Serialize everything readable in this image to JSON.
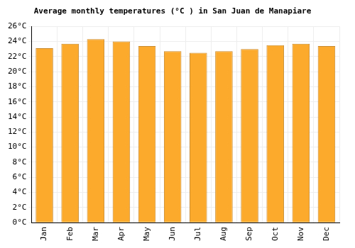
{
  "chart_data": {
    "type": "bar",
    "title": "Average monthly temperatures (°C ) in San Juan de Manapiare",
    "categories": [
      "Jan",
      "Feb",
      "Mar",
      "Apr",
      "May",
      "Jun",
      "Jul",
      "Aug",
      "Sep",
      "Oct",
      "Nov",
      "Dec"
    ],
    "values": [
      23.1,
      23.7,
      24.3,
      24.0,
      23.4,
      22.7,
      22.5,
      22.7,
      23.0,
      23.5,
      23.7,
      23.4
    ],
    "color": "#fbaa2b",
    "ylim": [
      0,
      26
    ],
    "yticks": [
      {
        "value": 0,
        "label": "0°C"
      },
      {
        "value": 2,
        "label": "2°C"
      },
      {
        "value": 4,
        "label": "4°C"
      },
      {
        "value": 6,
        "label": "6°C"
      },
      {
        "value": 8,
        "label": "8°C"
      },
      {
        "value": 10,
        "label": "10°C"
      },
      {
        "value": 12,
        "label": "12°C"
      },
      {
        "value": 14,
        "label": "14°C"
      },
      {
        "value": 16,
        "label": "16°C"
      },
      {
        "value": 18,
        "label": "18°C"
      },
      {
        "value": 20,
        "label": "20°C"
      },
      {
        "value": 22,
        "label": "22°C"
      },
      {
        "value": 24,
        "label": "24°C"
      },
      {
        "value": 26,
        "label": "26°C"
      }
    ],
    "grid": true
  }
}
